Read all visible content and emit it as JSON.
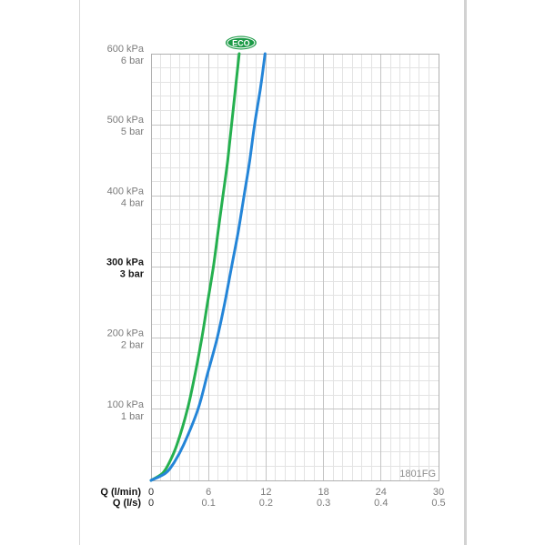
{
  "chart_data": {
    "type": "line",
    "xlabel": "Q (l/min)",
    "xlabel_secondary": "Q (l/s)",
    "xlim": [
      0,
      30
    ],
    "ylim": [
      0,
      600
    ],
    "grid": {
      "x_major": 6,
      "x_minor": 1,
      "y_major": 100,
      "y_minor": 20
    },
    "x_ticks": [
      {
        "value": 0,
        "label": "0",
        "secondary_label": "0"
      },
      {
        "value": 6,
        "label": "6",
        "secondary_label": "0.1"
      },
      {
        "value": 12,
        "label": "12",
        "secondary_label": "0.2"
      },
      {
        "value": 18,
        "label": "18",
        "secondary_label": "0.3"
      },
      {
        "value": 24,
        "label": "24",
        "secondary_label": "0.4"
      },
      {
        "value": 30,
        "label": "30",
        "secondary_label": "0.5"
      }
    ],
    "y_ticks": [
      {
        "value": 600,
        "label": "600 kPa",
        "sublabel": "6 bar"
      },
      {
        "value": 500,
        "label": "500 kPa",
        "sublabel": "5 bar"
      },
      {
        "value": 400,
        "label": "400 kPa",
        "sublabel": "4 bar"
      },
      {
        "value": 300,
        "label": "300 kPa",
        "sublabel": "3 bar",
        "bold": true
      },
      {
        "value": 200,
        "label": "200 kPa",
        "sublabel": "2 bar"
      },
      {
        "value": 100,
        "label": "100 kPa",
        "sublabel": "1 bar"
      }
    ],
    "series": [
      {
        "name": "ECO",
        "color": "#25b04f",
        "x": [
          0,
          1.2,
          1.9,
          2.7,
          3.8,
          4.6,
          5.3,
          5.9,
          6.5,
          7.0,
          7.5,
          8.0,
          8.4,
          8.8,
          9.2
        ],
        "y": [
          0,
          10,
          25,
          50,
          100,
          150,
          200,
          250,
          300,
          350,
          400,
          450,
          500,
          550,
          600
        ]
      },
      {
        "color": "#2485d8",
        "x": [
          0,
          1.5,
          2.4,
          3.4,
          4.9,
          5.9,
          6.9,
          7.7,
          8.4,
          9.1,
          9.7,
          10.3,
          10.8,
          11.4,
          11.9
        ],
        "y": [
          0,
          10,
          25,
          50,
          100,
          150,
          200,
          250,
          300,
          350,
          400,
          450,
          500,
          550,
          600
        ]
      }
    ],
    "badge": {
      "series": 0,
      "color": "#1b9a46"
    },
    "annotations": [
      {
        "text": "1801FG"
      }
    ]
  }
}
